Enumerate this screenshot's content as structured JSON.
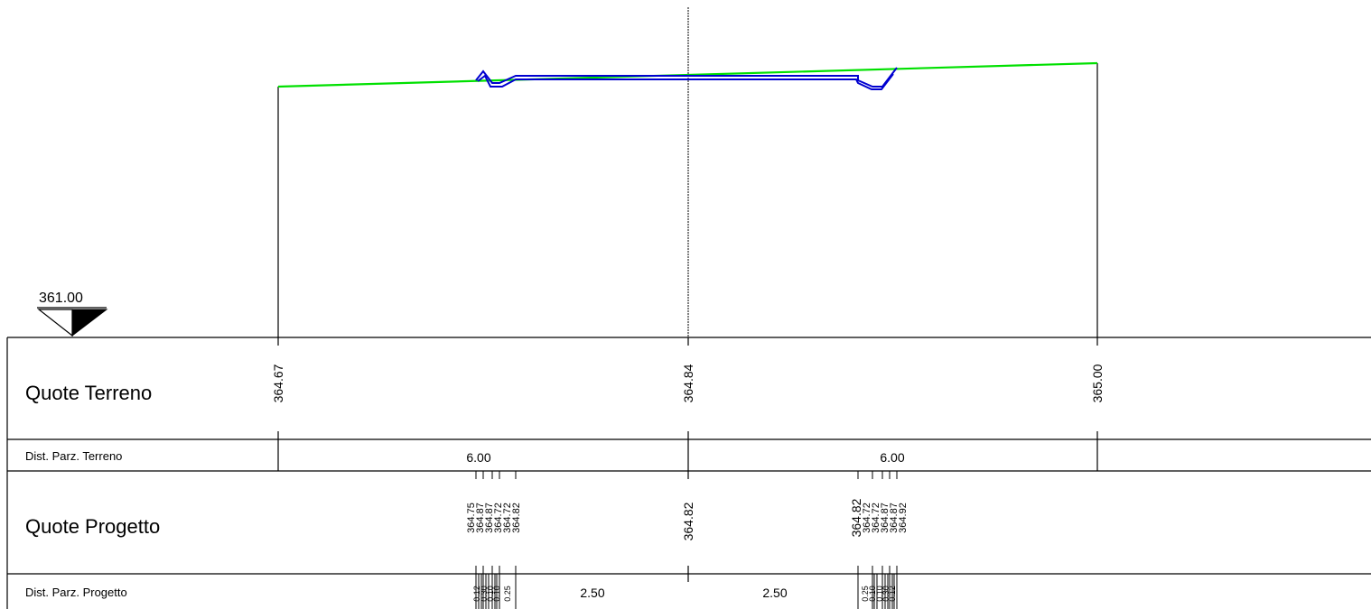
{
  "datum": {
    "label": "361.00"
  },
  "rows": {
    "quote_terreno": "Quote Terreno",
    "dist_parz_terreno": "Dist. Parz. Terreno",
    "quote_progetto": "Quote Progetto",
    "dist_parz_progetto": "Dist. Parz. Progetto"
  },
  "terrain": {
    "elevations": [
      "364.67",
      "364.84",
      "365.00"
    ],
    "partial_distances": [
      "6.00",
      "6.00"
    ]
  },
  "project": {
    "left_elevations": [
      "364.75",
      "364.87",
      "364.87",
      "364.72",
      "364.72",
      "364.82"
    ],
    "center_elevation": "364.82",
    "right_elevations": [
      "364.82",
      "364.72",
      "364.72",
      "364.87",
      "364.87",
      "364.92"
    ],
    "left_small_distances": [
      "0.12",
      "0.30",
      "0.10",
      "0.10",
      "0.25"
    ],
    "main_distances": [
      "2.50",
      "2.50"
    ],
    "right_small_distances": [
      "0.25",
      "0.10",
      "0.10",
      "0.30",
      "0.12"
    ]
  },
  "colors": {
    "terrain_line": "#00e000",
    "project_line": "#0000d0",
    "axis_line": "#000000"
  }
}
